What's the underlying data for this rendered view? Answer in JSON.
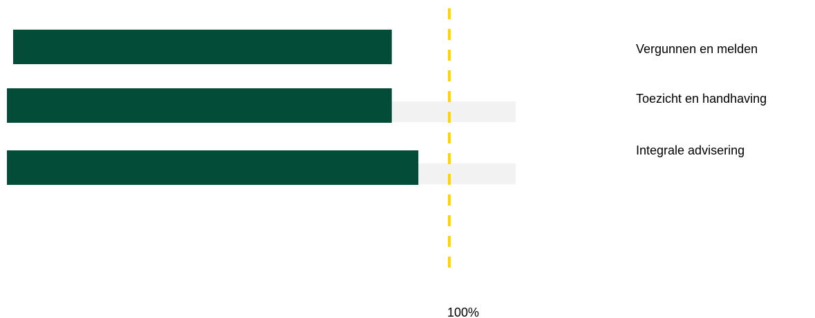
{
  "chart_data": {
    "type": "bar",
    "orientation": "horizontal",
    "categories": [
      "Vergunnen en melden",
      "Toezicht en handhaving",
      "Integrale advisering"
    ],
    "series": [
      {
        "values": [
          87,
          87,
          93
        ]
      },
      {
        "values": [
          null,
          115,
          115
        ]
      }
    ],
    "reference_line": {
      "value": 100,
      "label": "100%"
    },
    "xlim": [
      0,
      160
    ],
    "grid": false,
    "legend": "none",
    "colors": {
      "primary": "#034C37",
      "secondary": "#F2F2F2",
      "reference": "#FFD500"
    }
  }
}
